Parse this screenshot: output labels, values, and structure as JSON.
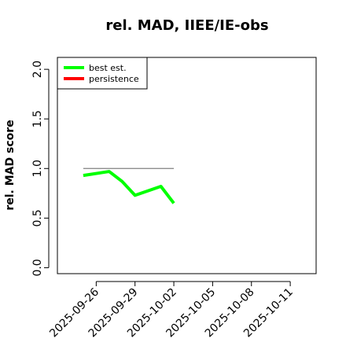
{
  "chart_data": {
    "type": "line",
    "title": "rel. MAD, IIEE/IE-obs",
    "y_label": "rel. MAD score",
    "x": [
      "2025-09-25",
      "2025-09-27",
      "2025-09-28",
      "2025-09-29",
      "2025-10-01",
      "2025-10-02"
    ],
    "series": [
      {
        "name": "best est.",
        "color": "#00ff00",
        "values": [
          0.93,
          0.97,
          0.87,
          0.73,
          0.82,
          0.65
        ]
      },
      {
        "name": "persistence",
        "color": "#ff0000",
        "values": [
          null,
          null,
          null,
          null,
          null,
          null
        ]
      }
    ],
    "reference_line": {
      "value": 1,
      "x": [
        "2025-09-25",
        "2025-10-02"
      ],
      "color": "#808080"
    },
    "xlim": [
      "2025-09-23",
      "2025-10-13"
    ],
    "xticks": [
      "2025-09-26",
      "2025-09-29",
      "2025-10-02",
      "2025-10-05",
      "2025-10-08",
      "2025-10-11"
    ],
    "ylim": [
      -0.06,
      2.12
    ],
    "yticks": [
      {
        "value": 0,
        "label": "0.0"
      },
      {
        "value": 0.5,
        "label": "0.5"
      },
      {
        "value": 1,
        "label": "1.0"
      },
      {
        "value": 1.5,
        "label": "1.5"
      },
      {
        "value": 2,
        "label": "2.0"
      }
    ],
    "legend": "top-left",
    "grid": false
  }
}
